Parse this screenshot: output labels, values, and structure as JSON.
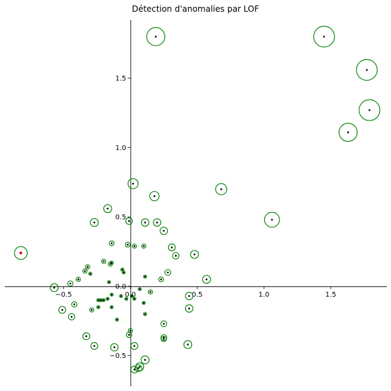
{
  "chart_data": {
    "type": "scatter",
    "title": "Détection d'anomalies par LOF",
    "xlabel": "",
    "ylabel": "",
    "xlim": [
      -0.94,
      1.92
    ],
    "ylim": [
      -0.72,
      1.92
    ],
    "xticks": [
      -0.5,
      0.0,
      0.5,
      1.0,
      1.5
    ],
    "yticks": [
      -0.5,
      0.0,
      0.5,
      1.0,
      1.5
    ],
    "xtick_labels": [
      "−0.5",
      "0.0",
      "0.5",
      "1.0",
      "1.5"
    ],
    "ytick_labels": [
      "−0.5",
      "0.0",
      "0.5",
      "1.0",
      "1.5"
    ],
    "spines": "centered at origin",
    "grid": false,
    "point_color": "#000000",
    "outlier_point_color": "#ff0000",
    "circle_color": "#008000",
    "points": [
      {
        "x": 0.19,
        "y": 1.8,
        "s": 0.068
      },
      {
        "x": 1.45,
        "y": 1.8,
        "s": 0.078
      },
      {
        "x": 1.77,
        "y": 1.56,
        "s": 0.078
      },
      {
        "x": 1.79,
        "y": 1.27,
        "s": 0.078
      },
      {
        "x": 1.63,
        "y": 1.11,
        "s": 0.068
      },
      {
        "x": 0.02,
        "y": 0.74,
        "s": 0.038
      },
      {
        "x": 0.18,
        "y": 0.65,
        "s": 0.035
      },
      {
        "x": 0.68,
        "y": 0.7,
        "s": 0.042
      },
      {
        "x": 1.06,
        "y": 0.48,
        "s": 0.056
      },
      {
        "x": -0.17,
        "y": 0.56,
        "s": 0.03
      },
      {
        "x": -0.27,
        "y": 0.46,
        "s": 0.03
      },
      {
        "x": -0.01,
        "y": 0.47,
        "s": 0.025
      },
      {
        "x": 0.11,
        "y": 0.46,
        "s": 0.028
      },
      {
        "x": 0.2,
        "y": 0.46,
        "s": 0.028
      },
      {
        "x": 0.25,
        "y": 0.4,
        "s": 0.028
      },
      {
        "x": -0.14,
        "y": 0.31,
        "s": 0.018
      },
      {
        "x": -0.02,
        "y": 0.3,
        "s": 0.018
      },
      {
        "x": 0.03,
        "y": 0.29,
        "s": 0.016
      },
      {
        "x": 0.1,
        "y": 0.29,
        "s": 0.016
      },
      {
        "x": 0.31,
        "y": 0.28,
        "s": 0.026
      },
      {
        "x": 0.34,
        "y": 0.22,
        "s": 0.024
      },
      {
        "x": 0.48,
        "y": 0.23,
        "s": 0.03
      },
      {
        "x": -0.2,
        "y": 0.18,
        "s": 0.016
      },
      {
        "x": -0.15,
        "y": 0.16,
        "s": 0.016
      },
      {
        "x": -0.14,
        "y": 0.17,
        "s": 0.012
      },
      {
        "x": -0.32,
        "y": 0.14,
        "s": 0.016
      },
      {
        "x": -0.34,
        "y": 0.11,
        "s": 0.016
      },
      {
        "x": -0.3,
        "y": 0.09,
        "s": 0.012
      },
      {
        "x": -0.06,
        "y": 0.12,
        "s": 0.012
      },
      {
        "x": -0.05,
        "y": 0.1,
        "s": 0.01
      },
      {
        "x": 0.28,
        "y": 0.1,
        "s": 0.022
      },
      {
        "x": 0.23,
        "y": 0.05,
        "s": 0.018
      },
      {
        "x": -0.39,
        "y": 0.05,
        "s": 0.016
      },
      {
        "x": -0.45,
        "y": 0.02,
        "s": 0.02
      },
      {
        "x": -0.57,
        "y": -0.01,
        "s": 0.03
      },
      {
        "x": 0.11,
        "y": 0.07,
        "s": 0.01
      },
      {
        "x": -0.16,
        "y": 0.03,
        "s": 0.008
      },
      {
        "x": 0.07,
        "y": -0.02,
        "s": 0.01
      },
      {
        "x": 0.15,
        "y": -0.04,
        "s": 0.016
      },
      {
        "x": -0.14,
        "y": -0.06,
        "s": 0.006
      },
      {
        "x": -0.07,
        "y": -0.07,
        "s": 0.008
      },
      {
        "x": -0.03,
        "y": -0.09,
        "s": 0.008
      },
      {
        "x": 0.01,
        "y": -0.07,
        "s": 0.006
      },
      {
        "x": 0.03,
        "y": -0.09,
        "s": 0.008
      },
      {
        "x": -0.24,
        "y": -0.1,
        "s": 0.012
      },
      {
        "x": -0.22,
        "y": -0.1,
        "s": 0.012
      },
      {
        "x": -0.2,
        "y": -0.1,
        "s": 0.01
      },
      {
        "x": -0.17,
        "y": -0.09,
        "s": 0.008
      },
      {
        "x": 0.1,
        "y": -0.12,
        "s": 0.01
      },
      {
        "x": -0.42,
        "y": -0.13,
        "s": 0.02
      },
      {
        "x": -0.24,
        "y": -0.15,
        "s": 0.012
      },
      {
        "x": -0.14,
        "y": -0.15,
        "s": 0.006
      },
      {
        "x": -0.29,
        "y": -0.17,
        "s": 0.016
      },
      {
        "x": -0.51,
        "y": -0.17,
        "s": 0.026
      },
      {
        "x": 0.44,
        "y": -0.16,
        "s": 0.028
      },
      {
        "x": 0.11,
        "y": -0.2,
        "s": 0.012
      },
      {
        "x": 0.44,
        "y": -0.07,
        "s": 0.028
      },
      {
        "x": -0.44,
        "y": -0.22,
        "s": 0.024
      },
      {
        "x": 0.57,
        "y": 0.05,
        "s": 0.03
      },
      {
        "x": -0.1,
        "y": -0.24,
        "s": 0.01
      },
      {
        "x": 0.25,
        "y": -0.27,
        "s": 0.022
      },
      {
        "x": 0.0,
        "y": -0.32,
        "s": 0.016
      },
      {
        "x": -0.01,
        "y": -0.35,
        "s": 0.02
      },
      {
        "x": -0.33,
        "y": -0.36,
        "s": 0.026
      },
      {
        "x": 0.25,
        "y": -0.37,
        "s": 0.022
      },
      {
        "x": 0.25,
        "y": -0.38,
        "s": 0.02
      },
      {
        "x": -0.27,
        "y": -0.43,
        "s": 0.026
      },
      {
        "x": 0.03,
        "y": -0.43,
        "s": 0.026
      },
      {
        "x": -0.12,
        "y": -0.44,
        "s": 0.028
      },
      {
        "x": 0.43,
        "y": -0.42,
        "s": 0.03
      },
      {
        "x": 0.11,
        "y": -0.53,
        "s": 0.03
      },
      {
        "x": 0.07,
        "y": -0.58,
        "s": 0.03
      },
      {
        "x": 0.06,
        "y": -0.59,
        "s": 0.026
      },
      {
        "x": 0.03,
        "y": -0.6,
        "s": 0.026
      },
      {
        "x": -0.82,
        "y": 0.24,
        "s": 0.048,
        "outlier": true
      }
    ]
  }
}
